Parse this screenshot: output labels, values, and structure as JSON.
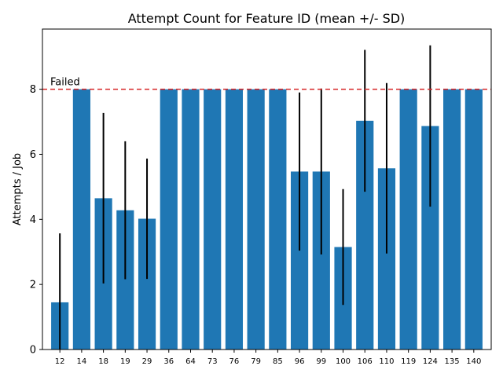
{
  "chart_data": {
    "type": "bar",
    "title": "Attempt Count for Feature ID (mean +/- SD)",
    "xlabel": "",
    "ylabel": "Attempts  /  Job",
    "categories": [
      "12",
      "14",
      "18",
      "19",
      "29",
      "36",
      "64",
      "73",
      "76",
      "79",
      "85",
      "96",
      "99",
      "100",
      "106",
      "110",
      "119",
      "124",
      "135",
      "140"
    ],
    "values": [
      1.45,
      8.0,
      4.65,
      4.28,
      4.02,
      8.0,
      8.0,
      8.0,
      8.0,
      8.0,
      8.0,
      5.47,
      5.47,
      3.15,
      7.03,
      5.57,
      8.0,
      6.87,
      8.0,
      8.0
    ],
    "errors": [
      2.12,
      0,
      2.62,
      2.12,
      1.85,
      0,
      0,
      0,
      0,
      0,
      0,
      2.43,
      2.55,
      1.78,
      2.18,
      2.62,
      0,
      2.48,
      0,
      0
    ],
    "ylim": [
      0,
      9.85
    ],
    "yticks": [
      0,
      2,
      4,
      6,
      8
    ],
    "bar_color": "#1f77b4",
    "error_color": "#000000",
    "threshold": {
      "value": 8,
      "label": "Failed",
      "color": "#d62728"
    }
  }
}
